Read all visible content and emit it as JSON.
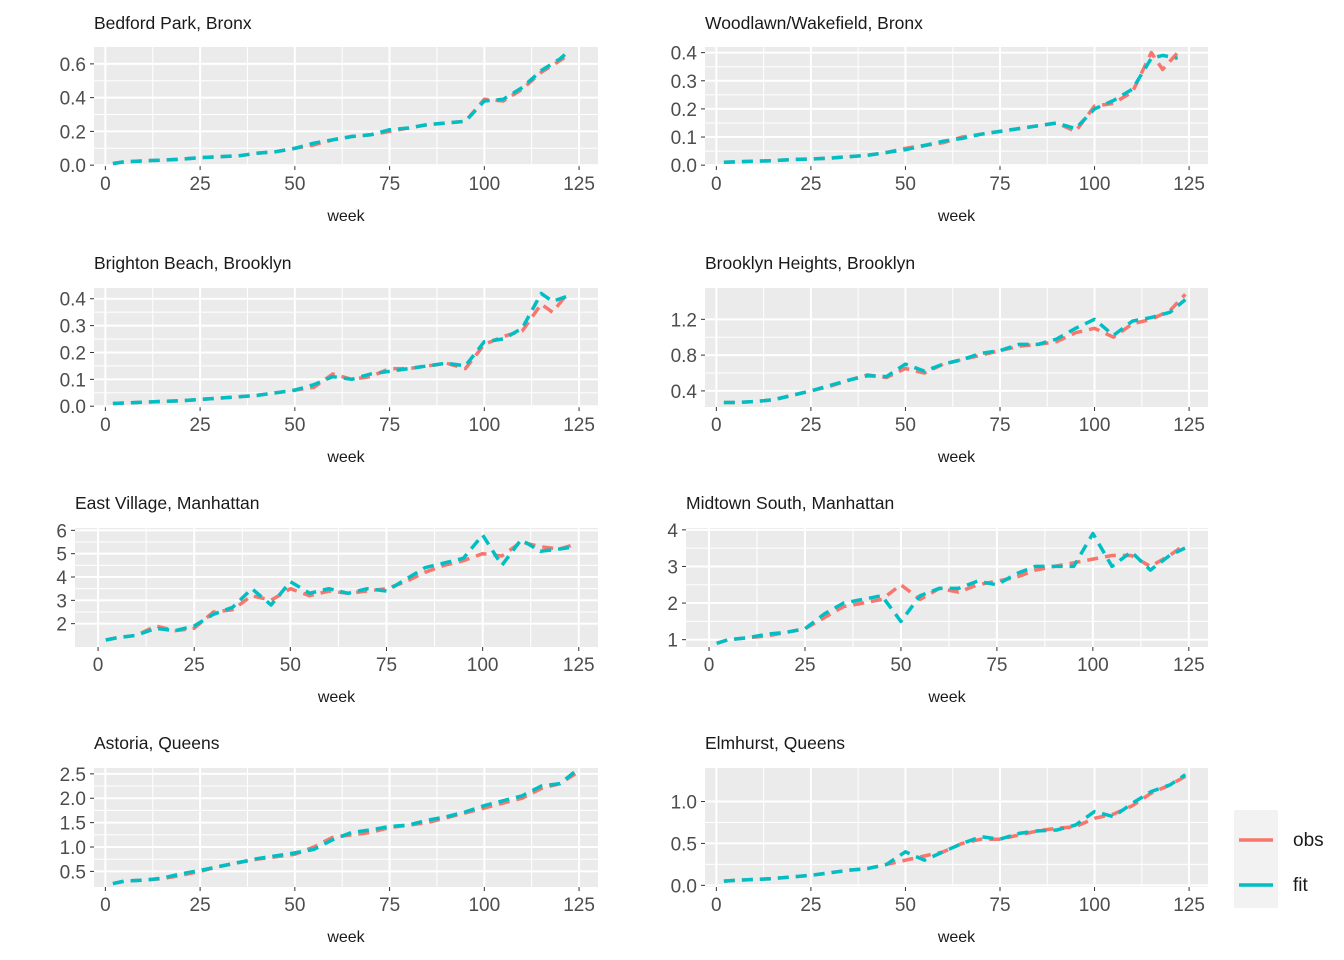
{
  "colors": {
    "obs": "#F8766D",
    "fit": "#00BFC4",
    "panel": "#EBEBEB",
    "grid": "#FFFFFF",
    "text": "#4D4D4D",
    "title": "#1A1A1A"
  },
  "legend": {
    "items": [
      "obs",
      "fit"
    ]
  },
  "chart_data": [
    {
      "type": "line",
      "title": "Bedford Park, Bronx",
      "xlabel": "week",
      "ylabel": "",
      "xlim": [
        -3,
        130
      ],
      "ylim": [
        -0.005,
        0.7
      ],
      "xticks": [
        0,
        25,
        50,
        75,
        100,
        125
      ],
      "yticks": [
        0.0,
        0.2,
        0.4,
        0.6
      ],
      "ytick_labels": [
        "0.0",
        "0.2",
        "0.4",
        "0.6"
      ],
      "x": [
        2,
        5,
        10,
        15,
        20,
        25,
        30,
        35,
        40,
        45,
        50,
        55,
        60,
        65,
        70,
        75,
        80,
        85,
        90,
        95,
        100,
        105,
        110,
        115,
        120,
        122
      ],
      "series": [
        {
          "name": "obs",
          "values": [
            0.01,
            0.02,
            0.025,
            0.03,
            0.035,
            0.045,
            0.05,
            0.055,
            0.07,
            0.08,
            0.1,
            0.12,
            0.15,
            0.17,
            0.18,
            0.2,
            0.22,
            0.24,
            0.25,
            0.26,
            0.39,
            0.38,
            0.45,
            0.55,
            0.62,
            0.65
          ]
        },
        {
          "name": "fit",
          "values": [
            0.01,
            0.02,
            0.025,
            0.03,
            0.035,
            0.045,
            0.05,
            0.055,
            0.07,
            0.08,
            0.1,
            0.13,
            0.15,
            0.17,
            0.18,
            0.21,
            0.22,
            0.24,
            0.25,
            0.26,
            0.38,
            0.39,
            0.46,
            0.56,
            0.63,
            0.67
          ]
        }
      ]
    },
    {
      "type": "line",
      "title": "Woodlawn/Wakefield, Bronx",
      "xlabel": "week",
      "ylabel": "",
      "xlim": [
        -3,
        130
      ],
      "ylim": [
        -0.003,
        0.42
      ],
      "xticks": [
        0,
        25,
        50,
        75,
        100,
        125
      ],
      "yticks": [
        0.0,
        0.1,
        0.2,
        0.3,
        0.4
      ],
      "ytick_labels": [
        "0.0",
        "0.1",
        "0.2",
        "0.3",
        "0.4"
      ],
      "x": [
        2,
        5,
        10,
        15,
        20,
        25,
        30,
        35,
        40,
        45,
        50,
        55,
        60,
        65,
        70,
        75,
        80,
        85,
        90,
        95,
        100,
        105,
        110,
        115,
        118,
        122
      ],
      "series": [
        {
          "name": "obs",
          "values": [
            0.01,
            0.012,
            0.014,
            0.016,
            0.02,
            0.022,
            0.025,
            0.03,
            0.035,
            0.045,
            0.06,
            0.07,
            0.08,
            0.1,
            0.11,
            0.12,
            0.13,
            0.14,
            0.15,
            0.12,
            0.21,
            0.22,
            0.26,
            0.4,
            0.34,
            0.4
          ]
        },
        {
          "name": "fit",
          "values": [
            0.01,
            0.012,
            0.014,
            0.016,
            0.02,
            0.022,
            0.025,
            0.03,
            0.035,
            0.045,
            0.055,
            0.07,
            0.085,
            0.095,
            0.11,
            0.12,
            0.13,
            0.14,
            0.15,
            0.13,
            0.2,
            0.23,
            0.27,
            0.38,
            0.39,
            0.38
          ]
        }
      ]
    },
    {
      "type": "line",
      "title": "Brighton Beach, Brooklyn",
      "xlabel": "week",
      "ylabel": "",
      "xlim": [
        -3,
        130
      ],
      "ylim": [
        -0.003,
        0.44
      ],
      "xticks": [
        0,
        25,
        50,
        75,
        100,
        125
      ],
      "yticks": [
        0.0,
        0.1,
        0.2,
        0.3,
        0.4
      ],
      "ytick_labels": [
        "0.0",
        "0.1",
        "0.2",
        "0.3",
        "0.4"
      ],
      "x": [
        2,
        5,
        10,
        15,
        20,
        25,
        30,
        35,
        40,
        45,
        50,
        55,
        60,
        65,
        70,
        75,
        80,
        85,
        90,
        95,
        100,
        105,
        110,
        115,
        118,
        122
      ],
      "series": [
        {
          "name": "obs",
          "values": [
            0.01,
            0.012,
            0.015,
            0.018,
            0.02,
            0.025,
            0.03,
            0.035,
            0.04,
            0.05,
            0.06,
            0.07,
            0.12,
            0.1,
            0.11,
            0.14,
            0.14,
            0.15,
            0.16,
            0.14,
            0.23,
            0.26,
            0.28,
            0.38,
            0.35,
            0.42
          ]
        },
        {
          "name": "fit",
          "values": [
            0.01,
            0.012,
            0.015,
            0.018,
            0.02,
            0.025,
            0.03,
            0.035,
            0.04,
            0.05,
            0.06,
            0.08,
            0.11,
            0.1,
            0.12,
            0.13,
            0.14,
            0.15,
            0.16,
            0.15,
            0.24,
            0.25,
            0.29,
            0.42,
            0.39,
            0.41
          ]
        }
      ]
    },
    {
      "type": "line",
      "title": "Brooklyn Heights, Brooklyn",
      "xlabel": "week",
      "ylabel": "",
      "xlim": [
        -3,
        130
      ],
      "ylim": [
        0.22,
        1.55
      ],
      "xticks": [
        0,
        25,
        50,
        75,
        100,
        125
      ],
      "yticks": [
        0.4,
        0.8,
        1.2
      ],
      "ytick_labels": [
        "0.4",
        "0.8",
        "1.2"
      ],
      "x": [
        2,
        5,
        10,
        15,
        20,
        25,
        30,
        35,
        40,
        45,
        50,
        55,
        60,
        65,
        70,
        75,
        80,
        85,
        90,
        95,
        100,
        105,
        110,
        115,
        120,
        124
      ],
      "series": [
        {
          "name": "obs",
          "values": [
            0.27,
            0.27,
            0.28,
            0.3,
            0.35,
            0.4,
            0.45,
            0.52,
            0.58,
            0.55,
            0.65,
            0.6,
            0.7,
            0.75,
            0.8,
            0.85,
            0.9,
            0.92,
            0.95,
            1.05,
            1.1,
            1.0,
            1.15,
            1.2,
            1.3,
            1.48
          ]
        },
        {
          "name": "fit",
          "values": [
            0.27,
            0.27,
            0.28,
            0.3,
            0.35,
            0.4,
            0.46,
            0.52,
            0.57,
            0.56,
            0.7,
            0.62,
            0.7,
            0.75,
            0.82,
            0.85,
            0.92,
            0.92,
            0.98,
            1.1,
            1.2,
            1.02,
            1.18,
            1.22,
            1.28,
            1.42
          ]
        }
      ]
    },
    {
      "type": "line",
      "title": "East Village, Manhattan",
      "xlabel": "week",
      "ylabel": "",
      "xlim": [
        -6,
        130
      ],
      "ylim": [
        1.0,
        6.1
      ],
      "xticks": [
        0,
        25,
        50,
        75,
        100,
        125
      ],
      "yticks": [
        2,
        3,
        4,
        5,
        6
      ],
      "ytick_labels": [
        "2",
        "3",
        "4",
        "5",
        "6"
      ],
      "x": [
        2,
        5,
        10,
        15,
        20,
        25,
        30,
        35,
        40,
        45,
        50,
        55,
        60,
        65,
        70,
        75,
        80,
        85,
        90,
        95,
        100,
        105,
        110,
        115,
        120,
        124
      ],
      "series": [
        {
          "name": "obs",
          "values": [
            1.3,
            1.4,
            1.5,
            1.9,
            1.7,
            1.8,
            2.5,
            2.6,
            3.2,
            3.0,
            3.5,
            3.2,
            3.4,
            3.3,
            3.4,
            3.5,
            3.8,
            4.2,
            4.5,
            4.7,
            5.0,
            4.9,
            5.5,
            5.3,
            5.2,
            5.4
          ]
        },
        {
          "name": "fit",
          "values": [
            1.3,
            1.4,
            1.5,
            1.8,
            1.7,
            1.9,
            2.4,
            2.7,
            3.5,
            2.8,
            3.8,
            3.3,
            3.5,
            3.3,
            3.5,
            3.4,
            3.9,
            4.4,
            4.6,
            4.8,
            5.8,
            4.5,
            5.6,
            5.1,
            5.2,
            5.3
          ]
        }
      ]
    },
    {
      "type": "line",
      "title": "Midtown South, Manhattan",
      "xlabel": "week",
      "ylabel": "",
      "xlim": [
        -6,
        130
      ],
      "ylim": [
        0.8,
        4.05
      ],
      "xticks": [
        0,
        25,
        50,
        75,
        100,
        125
      ],
      "yticks": [
        1,
        2,
        3,
        4
      ],
      "ytick_labels": [
        "1",
        "2",
        "3",
        "4"
      ],
      "x": [
        2,
        5,
        10,
        15,
        20,
        25,
        30,
        35,
        40,
        45,
        50,
        55,
        60,
        65,
        70,
        75,
        80,
        85,
        90,
        95,
        100,
        105,
        110,
        115,
        120,
        124
      ],
      "series": [
        {
          "name": "obs",
          "values": [
            0.9,
            1.0,
            1.05,
            1.1,
            1.2,
            1.3,
            1.6,
            1.9,
            2.0,
            2.1,
            2.5,
            2.1,
            2.4,
            2.3,
            2.5,
            2.6,
            2.7,
            2.9,
            3.0,
            3.1,
            3.2,
            3.3,
            3.3,
            3.0,
            3.3,
            3.6
          ]
        },
        {
          "name": "fit",
          "values": [
            0.9,
            1.0,
            1.05,
            1.15,
            1.2,
            1.3,
            1.7,
            2.0,
            2.1,
            2.2,
            1.5,
            2.2,
            2.4,
            2.4,
            2.6,
            2.5,
            2.8,
            3.0,
            3.0,
            3.0,
            3.9,
            3.0,
            3.4,
            2.9,
            3.3,
            3.5
          ]
        }
      ]
    },
    {
      "type": "line",
      "title": "Astoria, Queens",
      "xlabel": "week",
      "ylabel": "",
      "xlim": [
        -3,
        130
      ],
      "ylim": [
        0.18,
        2.62
      ],
      "xticks": [
        0,
        25,
        50,
        75,
        100,
        125
      ],
      "yticks": [
        0.5,
        1.0,
        1.5,
        2.0,
        2.5
      ],
      "ytick_labels": [
        "0.5",
        "1.0",
        "1.5",
        "2.0",
        "2.5"
      ],
      "x": [
        2,
        5,
        10,
        15,
        20,
        25,
        30,
        35,
        40,
        45,
        50,
        55,
        60,
        65,
        70,
        75,
        80,
        85,
        90,
        95,
        100,
        105,
        110,
        115,
        120,
        124
      ],
      "series": [
        {
          "name": "obs",
          "values": [
            0.25,
            0.3,
            0.32,
            0.35,
            0.42,
            0.5,
            0.6,
            0.68,
            0.75,
            0.8,
            0.85,
            1.0,
            1.2,
            1.25,
            1.3,
            1.4,
            1.45,
            1.5,
            1.6,
            1.7,
            1.8,
            1.9,
            2.0,
            2.2,
            2.3,
            2.5
          ]
        },
        {
          "name": "fit",
          "values": [
            0.25,
            0.3,
            0.32,
            0.36,
            0.45,
            0.52,
            0.6,
            0.68,
            0.76,
            0.82,
            0.88,
            0.95,
            1.15,
            1.3,
            1.35,
            1.42,
            1.45,
            1.55,
            1.62,
            1.72,
            1.85,
            1.95,
            2.05,
            2.25,
            2.3,
            2.55
          ]
        }
      ]
    },
    {
      "type": "line",
      "title": "Elmhurst, Queens",
      "xlabel": "week",
      "ylabel": "",
      "xlim": [
        -3,
        130
      ],
      "ylim": [
        -0.02,
        1.4
      ],
      "xticks": [
        0,
        25,
        50,
        75,
        100,
        125
      ],
      "yticks": [
        0.0,
        0.5,
        1.0
      ],
      "ytick_labels": [
        "0.0",
        "0.5",
        "1.0"
      ],
      "x": [
        2,
        5,
        10,
        15,
        20,
        25,
        30,
        35,
        40,
        45,
        50,
        55,
        60,
        65,
        70,
        75,
        80,
        85,
        90,
        95,
        100,
        105,
        110,
        115,
        120,
        124
      ],
      "series": [
        {
          "name": "obs",
          "values": [
            0.05,
            0.06,
            0.07,
            0.08,
            0.1,
            0.12,
            0.15,
            0.18,
            0.2,
            0.25,
            0.3,
            0.35,
            0.4,
            0.5,
            0.55,
            0.55,
            0.6,
            0.65,
            0.68,
            0.7,
            0.8,
            0.85,
            0.95,
            1.1,
            1.2,
            1.3
          ]
        },
        {
          "name": "fit",
          "values": [
            0.05,
            0.06,
            0.07,
            0.08,
            0.1,
            0.12,
            0.15,
            0.18,
            0.2,
            0.25,
            0.4,
            0.3,
            0.4,
            0.5,
            0.58,
            0.55,
            0.62,
            0.65,
            0.66,
            0.72,
            0.88,
            0.82,
            0.98,
            1.12,
            1.2,
            1.32
          ]
        }
      ]
    }
  ]
}
